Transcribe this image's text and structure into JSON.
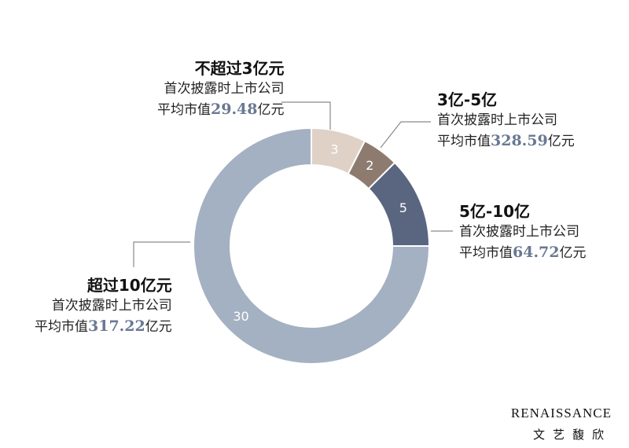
{
  "chart_data": {
    "type": "pie",
    "categories": [
      "不超过3亿元",
      "3亿-5亿",
      "5亿-10亿",
      "超过10亿元"
    ],
    "values": [
      3,
      2,
      5,
      30
    ],
    "colors": [
      "#dfd1c6",
      "#8d7b6f",
      "#5a6680",
      "#a3b1c2"
    ],
    "annotations": [
      {
        "title": "不超过3亿元",
        "line1": "首次披露时上市公司",
        "prefix": "平均市值",
        "value": "29.48",
        "unit": "亿元"
      },
      {
        "title": "3亿-5亿",
        "line1": "首次披露时上市公司",
        "prefix": "平均市值",
        "value": "328.59",
        "unit": "亿元"
      },
      {
        "title": "5亿-10亿",
        "line1": "首次披露时上市公司",
        "prefix": "平均市值",
        "value": "64.72",
        "unit": "亿元"
      },
      {
        "title": "超过10亿元",
        "line1": "首次披露时上市公司",
        "prefix": "平均市值",
        "value": "317.22",
        "unit": "亿元"
      }
    ],
    "legend": "none"
  },
  "brand": {
    "en": "RENAISSANCE",
    "cn": "文艺馥欣"
  }
}
